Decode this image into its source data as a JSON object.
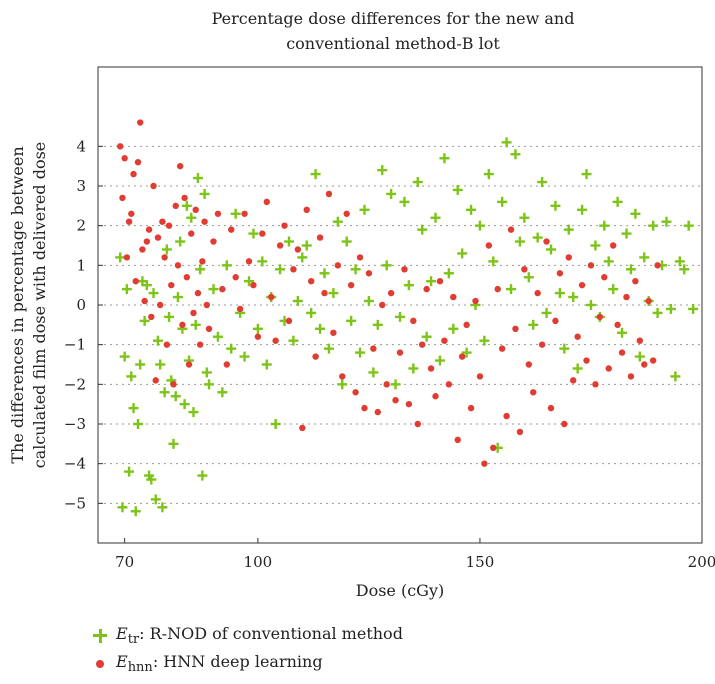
{
  "chart_data": {
    "type": "scatter",
    "title_line1": "Percentage dose differences for the new and",
    "title_line2": "conventional method-B lot",
    "xlabel": "Dose (cGy)",
    "ylabel_line1": "The differences in percentage between",
    "ylabel_line2": "calculated film dose with delivered dose",
    "xlim": [
      64,
      200
    ],
    "ylim": [
      -6,
      6
    ],
    "x_ticks": [
      70,
      100,
      150,
      200
    ],
    "y_ticks": [
      -5,
      -4,
      -3,
      -2,
      -1,
      0,
      1,
      2,
      3,
      4
    ],
    "grid": "horizontal dotted",
    "legend_position": "bottom-left, below plot",
    "series": [
      {
        "name_symbol": "E",
        "name_sub": "tr",
        "name_rest": ": R-NOD of conventional method",
        "marker": "plus",
        "color": "#7cc418",
        "points": [
          [
            69,
            1.2
          ],
          [
            69.5,
            -5.1
          ],
          [
            70,
            -1.3
          ],
          [
            70.5,
            0.4
          ],
          [
            71,
            -4.2
          ],
          [
            71.5,
            -1.8
          ],
          [
            72,
            -2.6
          ],
          [
            72.5,
            -5.2
          ],
          [
            73,
            -3.0
          ],
          [
            73.5,
            -1.5
          ],
          [
            74,
            0.6
          ],
          [
            74.5,
            -0.4
          ],
          [
            75,
            0.5
          ],
          [
            75.5,
            -4.3
          ],
          [
            76,
            -4.4
          ],
          [
            76.5,
            0.3
          ],
          [
            77,
            -4.9
          ],
          [
            77.5,
            -0.9
          ],
          [
            78,
            -1.5
          ],
          [
            78.5,
            -5.1
          ],
          [
            79,
            -2.2
          ],
          [
            79.5,
            1.4
          ],
          [
            80,
            -0.3
          ],
          [
            80.5,
            -1.9
          ],
          [
            81,
            -3.5
          ],
          [
            81.5,
            -2.3
          ],
          [
            82,
            0.2
          ],
          [
            82.5,
            1.6
          ],
          [
            83,
            -0.6
          ],
          [
            83.5,
            -2.5
          ],
          [
            84,
            2.5
          ],
          [
            84.5,
            -1.4
          ],
          [
            85,
            2.2
          ],
          [
            85.5,
            -2.7
          ],
          [
            86,
            -0.5
          ],
          [
            86.5,
            3.2
          ],
          [
            87,
            0.9
          ],
          [
            87.5,
            -4.3
          ],
          [
            88,
            2.8
          ],
          [
            88.5,
            -1.7
          ],
          [
            89,
            -2.0
          ],
          [
            90,
            0.4
          ],
          [
            91,
            -0.8
          ],
          [
            92,
            -2.2
          ],
          [
            93,
            1.0
          ],
          [
            94,
            -1.1
          ],
          [
            95,
            2.3
          ],
          [
            96,
            -0.2
          ],
          [
            97,
            -1.3
          ],
          [
            98,
            0.6
          ],
          [
            99,
            1.8
          ],
          [
            100,
            -0.6
          ],
          [
            101,
            1.1
          ],
          [
            102,
            -1.5
          ],
          [
            103,
            0.2
          ],
          [
            104,
            -3.0
          ],
          [
            105,
            0.9
          ],
          [
            106,
            -0.4
          ],
          [
            107,
            1.6
          ],
          [
            108,
            -0.9
          ],
          [
            109,
            0.1
          ],
          [
            110,
            1.2
          ],
          [
            111,
            1.5
          ],
          [
            112,
            -0.2
          ],
          [
            113,
            3.3
          ],
          [
            114,
            -0.6
          ],
          [
            115,
            0.8
          ],
          [
            116,
            -1.1
          ],
          [
            117,
            0.3
          ],
          [
            118,
            2.1
          ],
          [
            119,
            -2.0
          ],
          [
            120,
            1.6
          ],
          [
            121,
            -0.4
          ],
          [
            122,
            0.9
          ],
          [
            123,
            -1.2
          ],
          [
            124,
            2.4
          ],
          [
            125,
            0.1
          ],
          [
            126,
            -1.7
          ],
          [
            127,
            -0.5
          ],
          [
            128,
            3.4
          ],
          [
            129,
            1.0
          ],
          [
            130,
            2.8
          ],
          [
            131,
            -2.0
          ],
          [
            132,
            -0.3
          ],
          [
            133,
            2.6
          ],
          [
            134,
            0.5
          ],
          [
            135,
            -1.6
          ],
          [
            136,
            3.1
          ],
          [
            137,
            1.9
          ],
          [
            138,
            -0.8
          ],
          [
            139,
            0.6
          ],
          [
            140,
            2.2
          ],
          [
            141,
            -1.4
          ],
          [
            142,
            3.7
          ],
          [
            143,
            0.8
          ],
          [
            144,
            -0.6
          ],
          [
            145,
            2.9
          ],
          [
            146,
            1.3
          ],
          [
            147,
            -1.2
          ],
          [
            148,
            2.4
          ],
          [
            149,
            0.0
          ],
          [
            150,
            2.0
          ],
          [
            151,
            -0.9
          ],
          [
            152,
            3.3
          ],
          [
            153,
            1.1
          ],
          [
            154,
            -3.6
          ],
          [
            155,
            2.6
          ],
          [
            156,
            4.1
          ],
          [
            157,
            0.4
          ],
          [
            158,
            3.8
          ],
          [
            159,
            1.6
          ],
          [
            160,
            2.2
          ],
          [
            161,
            0.7
          ],
          [
            162,
            -0.5
          ],
          [
            163,
            1.7
          ],
          [
            164,
            3.1
          ],
          [
            165,
            -0.2
          ],
          [
            166,
            1.4
          ],
          [
            167,
            2.5
          ],
          [
            168,
            0.3
          ],
          [
            169,
            -1.1
          ],
          [
            170,
            1.9
          ],
          [
            171,
            0.2
          ],
          [
            172,
            -1.6
          ],
          [
            173,
            2.4
          ],
          [
            174,
            3.3
          ],
          [
            175,
            0.0
          ],
          [
            176,
            1.5
          ],
          [
            177,
            -0.3
          ],
          [
            178,
            2.0
          ],
          [
            179,
            1.1
          ],
          [
            180,
            0.4
          ],
          [
            181,
            2.6
          ],
          [
            182,
            -0.7
          ],
          [
            183,
            1.8
          ],
          [
            184,
            0.9
          ],
          [
            185,
            2.3
          ],
          [
            186,
            -1.3
          ],
          [
            187,
            1.2
          ],
          [
            188,
            0.1
          ],
          [
            189,
            2.0
          ],
          [
            190,
            -0.2
          ],
          [
            191,
            1.0
          ],
          [
            192,
            2.1
          ],
          [
            193,
            -0.1
          ],
          [
            194,
            -1.8
          ],
          [
            195,
            1.1
          ],
          [
            196,
            0.9
          ],
          [
            197,
            2.0
          ],
          [
            198,
            -0.1
          ]
        ]
      },
      {
        "name_symbol": "E",
        "name_sub": "hnn",
        "name_rest": ": HNN deep learning",
        "marker": "dot",
        "color": "#e03c31",
        "points": [
          [
            69,
            4.0
          ],
          [
            69.5,
            2.7
          ],
          [
            70,
            3.7
          ],
          [
            70.5,
            1.2
          ],
          [
            71,
            2.1
          ],
          [
            71.5,
            2.3
          ],
          [
            72,
            3.3
          ],
          [
            72.5,
            0.6
          ],
          [
            73,
            3.6
          ],
          [
            73.5,
            4.6
          ],
          [
            74,
            1.4
          ],
          [
            74.5,
            0.1
          ],
          [
            75,
            1.6
          ],
          [
            75.5,
            1.9
          ],
          [
            76,
            -0.3
          ],
          [
            76.5,
            3.0
          ],
          [
            77,
            -1.9
          ],
          [
            77.5,
            1.7
          ],
          [
            78,
            0.0
          ],
          [
            78.5,
            2.1
          ],
          [
            79,
            1.2
          ],
          [
            79.5,
            -1.0
          ],
          [
            80,
            2.0
          ],
          [
            80.5,
            0.5
          ],
          [
            81,
            -2.0
          ],
          [
            81.5,
            2.5
          ],
          [
            82,
            1.0
          ],
          [
            82.5,
            3.5
          ],
          [
            83,
            -0.5
          ],
          [
            83.5,
            2.7
          ],
          [
            84,
            0.7
          ],
          [
            84.5,
            -1.5
          ],
          [
            85,
            1.8
          ],
          [
            85.5,
            -0.2
          ],
          [
            86,
            2.4
          ],
          [
            86.5,
            0.3
          ],
          [
            87,
            -1.0
          ],
          [
            87.5,
            1.1
          ],
          [
            88,
            2.1
          ],
          [
            88.5,
            0.0
          ],
          [
            89,
            -0.6
          ],
          [
            90,
            1.6
          ],
          [
            91,
            2.3
          ],
          [
            92,
            0.4
          ],
          [
            93,
            -1.5
          ],
          [
            94,
            1.9
          ],
          [
            95,
            0.7
          ],
          [
            96,
            -0.1
          ],
          [
            97,
            2.3
          ],
          [
            98,
            1.1
          ],
          [
            99,
            0.5
          ],
          [
            100,
            -0.8
          ],
          [
            101,
            1.8
          ],
          [
            102,
            2.6
          ],
          [
            103,
            0.2
          ],
          [
            104,
            -0.9
          ],
          [
            105,
            1.5
          ],
          [
            106,
            2.0
          ],
          [
            107,
            -0.4
          ],
          [
            108,
            0.9
          ],
          [
            109,
            1.4
          ],
          [
            110,
            -3.1
          ],
          [
            111,
            2.4
          ],
          [
            112,
            0.6
          ],
          [
            113,
            -1.3
          ],
          [
            114,
            1.7
          ],
          [
            115,
            0.3
          ],
          [
            116,
            2.8
          ],
          [
            117,
            -0.7
          ],
          [
            118,
            1.0
          ],
          [
            119,
            -1.8
          ],
          [
            120,
            2.3
          ],
          [
            121,
            0.5
          ],
          [
            122,
            -2.2
          ],
          [
            123,
            1.2
          ],
          [
            124,
            -2.6
          ],
          [
            125,
            0.8
          ],
          [
            126,
            -1.1
          ],
          [
            127,
            -2.7
          ],
          [
            128,
            0.0
          ],
          [
            129,
            -2.0
          ],
          [
            130,
            0.3
          ],
          [
            131,
            -2.4
          ],
          [
            132,
            -1.2
          ],
          [
            133,
            0.9
          ],
          [
            134,
            -2.5
          ],
          [
            135,
            -0.4
          ],
          [
            136,
            -3.0
          ],
          [
            137,
            -1.0
          ],
          [
            138,
            0.4
          ],
          [
            139,
            -1.6
          ],
          [
            140,
            -2.3
          ],
          [
            141,
            0.6
          ],
          [
            142,
            -0.9
          ],
          [
            143,
            -2.0
          ],
          [
            144,
            0.2
          ],
          [
            145,
            -3.4
          ],
          [
            146,
            -1.3
          ],
          [
            147,
            -0.5
          ],
          [
            148,
            -2.6
          ],
          [
            149,
            0.1
          ],
          [
            150,
            -1.8
          ],
          [
            151,
            -4.0
          ],
          [
            152,
            1.5
          ],
          [
            153,
            -3.6
          ],
          [
            154,
            0.4
          ],
          [
            155,
            -1.1
          ],
          [
            156,
            -2.8
          ],
          [
            157,
            1.9
          ],
          [
            158,
            -0.6
          ],
          [
            159,
            -3.2
          ],
          [
            160,
            0.9
          ],
          [
            161,
            -1.5
          ],
          [
            162,
            -2.2
          ],
          [
            163,
            0.3
          ],
          [
            164,
            -1.0
          ],
          [
            165,
            1.6
          ],
          [
            166,
            -2.6
          ],
          [
            167,
            -0.4
          ],
          [
            168,
            0.8
          ],
          [
            169,
            -3.0
          ],
          [
            170,
            1.2
          ],
          [
            171,
            -1.9
          ],
          [
            172,
            -0.8
          ],
          [
            173,
            0.5
          ],
          [
            174,
            -1.4
          ],
          [
            175,
            1.0
          ],
          [
            176,
            -2.0
          ],
          [
            177,
            -0.3
          ],
          [
            178,
            0.7
          ],
          [
            179,
            -1.6
          ],
          [
            180,
            1.5
          ],
          [
            181,
            -0.5
          ],
          [
            182,
            -1.2
          ],
          [
            183,
            0.2
          ],
          [
            184,
            -1.8
          ],
          [
            185,
            0.6
          ],
          [
            186,
            -0.9
          ],
          [
            187,
            -1.5
          ],
          [
            188,
            0.1
          ],
          [
            189,
            -1.4
          ],
          [
            190,
            1.0
          ]
        ]
      }
    ]
  }
}
